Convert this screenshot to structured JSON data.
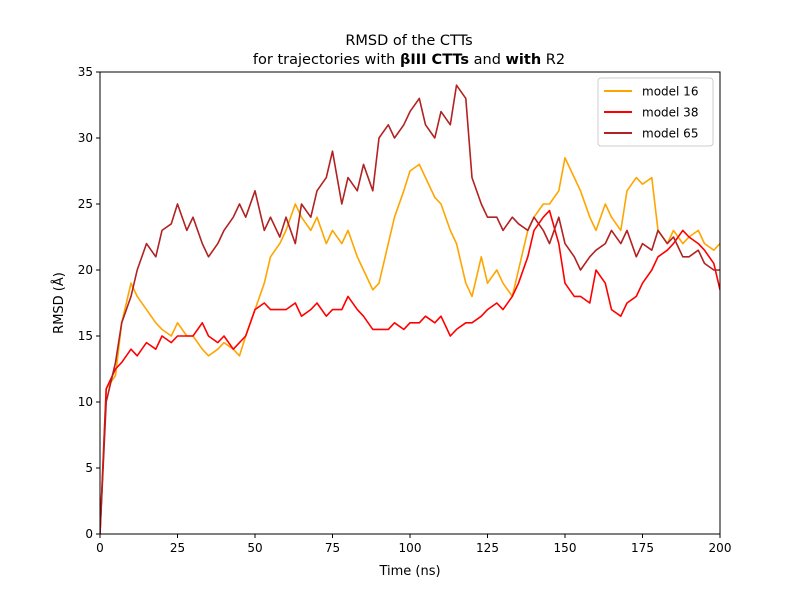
{
  "chart_data": {
    "type": "line",
    "title": {
      "line1": "RMSD of the CTTs",
      "line2_parts": [
        {
          "text": "for trajectories with ",
          "bold": false
        },
        {
          "text": "βIII CTTs",
          "bold": true
        },
        {
          "text": " and ",
          "bold": false
        },
        {
          "text": "with",
          "bold": true
        },
        {
          "text": " R2",
          "bold": false
        }
      ]
    },
    "xlabel": "Time (ns)",
    "ylabel": "RMSD (Å)",
    "xlim": [
      0,
      200
    ],
    "ylim": [
      0,
      35
    ],
    "xticks": [
      0,
      25,
      50,
      75,
      100,
      125,
      150,
      175,
      200
    ],
    "yticks": [
      0,
      5,
      10,
      15,
      20,
      25,
      30,
      35
    ],
    "grid": false,
    "legend_position": "top-right",
    "series": [
      {
        "name": "model 16",
        "color": "#FFA500",
        "x": [
          0,
          2,
          5,
          7,
          10,
          12,
          15,
          18,
          20,
          23,
          25,
          28,
          30,
          33,
          35,
          38,
          40,
          43,
          45,
          47,
          50,
          53,
          55,
          58,
          60,
          63,
          65,
          68,
          70,
          73,
          75,
          78,
          80,
          83,
          85,
          88,
          90,
          93,
          95,
          98,
          100,
          103,
          105,
          108,
          110,
          113,
          115,
          118,
          120,
          123,
          125,
          128,
          130,
          133,
          135,
          138,
          140,
          143,
          145,
          148,
          150,
          153,
          155,
          158,
          160,
          163,
          165,
          168,
          170,
          173,
          175,
          178,
          180,
          183,
          185,
          188,
          190,
          193,
          195,
          198,
          200
        ],
        "y": [
          0,
          11,
          12,
          16,
          19,
          18,
          17,
          16,
          15.5,
          15,
          16,
          15,
          15,
          14,
          13.5,
          14,
          14.5,
          14,
          13.5,
          15,
          17,
          19,
          21,
          22,
          23,
          25,
          24,
          23,
          24,
          22,
          23,
          22,
          23,
          21,
          20,
          18.5,
          19,
          22,
          24,
          26,
          27.5,
          28,
          27,
          25.5,
          25,
          23,
          22,
          19,
          18,
          21,
          19,
          20,
          19,
          18,
          20,
          23,
          24,
          25,
          25,
          26,
          28.5,
          27,
          26,
          24,
          23,
          25,
          24,
          23,
          26,
          27,
          26.5,
          27,
          23,
          22,
          23,
          22,
          22.5,
          23,
          22,
          21.5,
          22
        ]
      },
      {
        "name": "model 38",
        "color": "#FF0000",
        "x": [
          0,
          2,
          5,
          7,
          10,
          12,
          15,
          18,
          20,
          23,
          25,
          28,
          30,
          33,
          35,
          38,
          40,
          43,
          45,
          47,
          50,
          53,
          55,
          58,
          60,
          63,
          65,
          68,
          70,
          73,
          75,
          78,
          80,
          83,
          85,
          88,
          90,
          93,
          95,
          98,
          100,
          103,
          105,
          108,
          110,
          113,
          115,
          118,
          120,
          123,
          125,
          128,
          130,
          133,
          135,
          138,
          140,
          143,
          145,
          148,
          150,
          153,
          155,
          158,
          160,
          163,
          165,
          168,
          170,
          173,
          175,
          178,
          180,
          183,
          185,
          188,
          190,
          193,
          195,
          198,
          200
        ],
        "y": [
          0,
          11,
          12.5,
          13,
          14,
          13.5,
          14.5,
          14,
          15,
          14.5,
          15,
          15,
          15,
          16,
          15,
          14.5,
          15,
          14,
          14.5,
          15,
          17,
          17.5,
          17,
          17,
          17,
          17.5,
          16.5,
          17,
          17.5,
          16.5,
          17,
          17,
          18,
          17,
          16.5,
          15.5,
          15.5,
          15.5,
          16,
          15.5,
          16,
          16,
          16.5,
          16,
          16.5,
          15,
          15.5,
          16,
          16,
          16.5,
          17,
          17.5,
          17,
          18,
          19,
          21,
          23,
          24,
          24.5,
          22,
          19,
          18,
          18,
          17.5,
          20,
          19,
          17,
          16.5,
          17.5,
          18,
          19,
          20,
          21,
          21.5,
          22,
          23,
          22.5,
          22,
          21.5,
          20.5,
          18.5
        ]
      },
      {
        "name": "model 65",
        "color": "#B22222",
        "x": [
          0,
          2,
          5,
          7,
          10,
          12,
          15,
          18,
          20,
          23,
          25,
          28,
          30,
          33,
          35,
          38,
          40,
          43,
          45,
          47,
          50,
          53,
          55,
          58,
          60,
          63,
          65,
          68,
          70,
          73,
          75,
          78,
          80,
          83,
          85,
          88,
          90,
          93,
          95,
          98,
          100,
          103,
          105,
          108,
          110,
          113,
          115,
          118,
          120,
          123,
          125,
          128,
          130,
          133,
          135,
          138,
          140,
          143,
          145,
          148,
          150,
          153,
          155,
          158,
          160,
          163,
          165,
          168,
          170,
          173,
          175,
          178,
          180,
          183,
          185,
          188,
          190,
          193,
          195,
          198,
          200
        ],
        "y": [
          0,
          10,
          13,
          16,
          18,
          20,
          22,
          21,
          23,
          23.5,
          25,
          23,
          24,
          22,
          21,
          22,
          23,
          24,
          25,
          24,
          26,
          23,
          24,
          22.5,
          24,
          22,
          25,
          24,
          26,
          27,
          29,
          25,
          27,
          26,
          28,
          26,
          30,
          31,
          30,
          31,
          32,
          33,
          31,
          30,
          32,
          31,
          34,
          33,
          27,
          25,
          24,
          24,
          23,
          24,
          23.5,
          23,
          24,
          23,
          22,
          24,
          22,
          21,
          20,
          21,
          21.5,
          22,
          23,
          22,
          23,
          21,
          22,
          21.5,
          23,
          22,
          22.5,
          21,
          21,
          21.5,
          20.5,
          20,
          20
        ]
      }
    ]
  }
}
